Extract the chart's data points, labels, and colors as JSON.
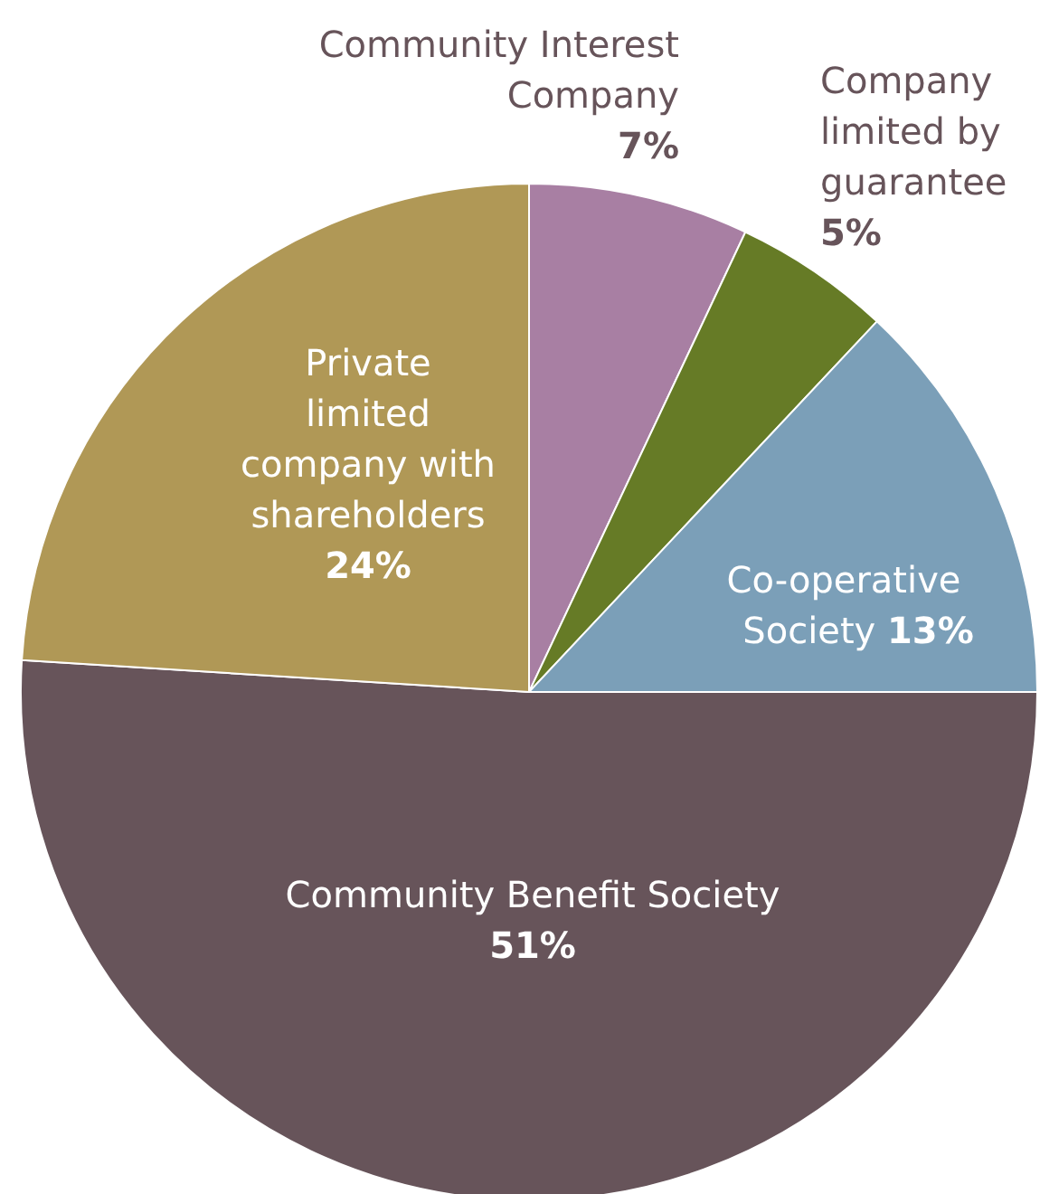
{
  "chart_data": {
    "type": "pie",
    "categories": [
      "Community Interest Company",
      "Company limited by guarantee",
      "Co-operative Society",
      "Community Benefit Society",
      "Private limited company with shareholders"
    ],
    "values": [
      7,
      5,
      13,
      51,
      24
    ],
    "colors": [
      "#a87fa3",
      "#667b26",
      "#7b9fb8",
      "#67545a",
      "#b09856"
    ],
    "value_labels": [
      "7%",
      "5%",
      "13%",
      "51%",
      "24%"
    ]
  }
}
